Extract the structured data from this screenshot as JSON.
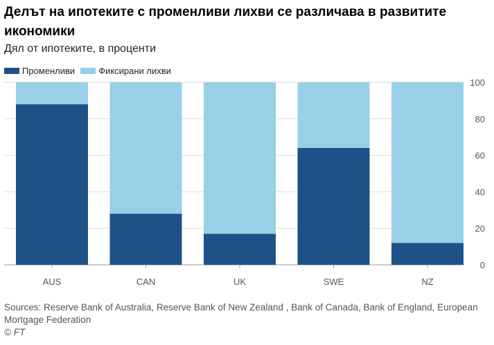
{
  "chart_data": {
    "type": "bar",
    "stacked": true,
    "title": "Делът на ипотеките с променливи лихви се различава в развитите икономики",
    "subtitle": "Дял от ипотеките, в проценти",
    "categories": [
      "AUS",
      "CAN",
      "UK",
      "SWE",
      "NZ"
    ],
    "series": [
      {
        "name": "Променливи",
        "color": "#1f5189",
        "values": [
          88,
          28,
          17,
          64,
          12
        ]
      },
      {
        "name": "Фиксирани лихви",
        "color": "#97d0e7",
        "values": [
          12,
          72,
          83,
          36,
          88
        ]
      }
    ],
    "ylim": [
      0,
      100
    ],
    "yticks": [
      0,
      20,
      40,
      60,
      80,
      100
    ],
    "y_axis_side": "right",
    "grid": true,
    "legend_position": "top-left",
    "source": "Sources: Reserve Bank of Australia, Reserve Bank of New Zealand , Bank of Canada, Bank of England, European Mortgage Federation",
    "credit": "© FT"
  }
}
